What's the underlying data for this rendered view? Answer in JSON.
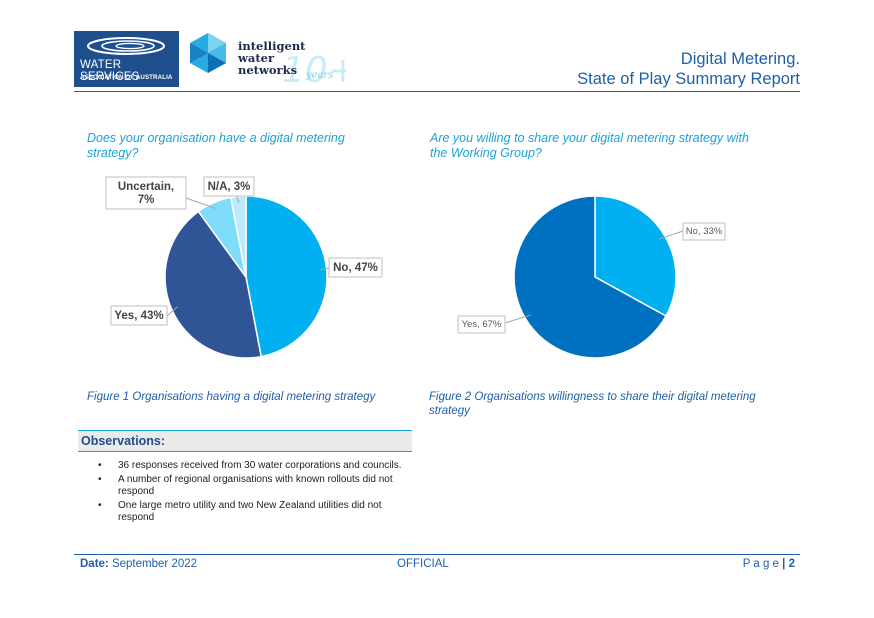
{
  "header": {
    "wsaa_logo": {
      "line1": "WATER SERVICES",
      "line2": "ASSOCIATION OF AUSTRALIA"
    },
    "iwn_logo": {
      "line1": "intelligent",
      "line2": "water",
      "line3": "networks",
      "badge": "10+",
      "years": "years"
    },
    "title_line1": "Digital Metering.",
    "title_line2": "State of Play Summary Report"
  },
  "figure1": {
    "question": "Does your organisation have a digital metering strategy?",
    "caption": "Figure 1 Organisations having a digital metering strategy"
  },
  "figure2": {
    "question": "Are you willing to share your digital metering strategy with the Working Group?",
    "caption": "Figure 2 Organisations willingness to share their digital metering strategy"
  },
  "chart_data": [
    {
      "type": "pie",
      "title": "",
      "start_angle_deg": 0,
      "slices": [
        {
          "label": "No, 47%",
          "value": 47,
          "color": "#00b0f0"
        },
        {
          "label": "Yes, 43%",
          "value": 43,
          "color": "#2f5597"
        },
        {
          "label": "Uncertain, 7%",
          "value": 7,
          "color": "#7fdcfb"
        },
        {
          "label": "N/A, 3%",
          "value": 3,
          "color": "#bde9fb"
        }
      ]
    },
    {
      "type": "pie",
      "title": "",
      "start_angle_deg": 0,
      "slices": [
        {
          "label": "No, 33%",
          "value": 33,
          "color": "#00b0f0"
        },
        {
          "label": "Yes, 67%",
          "value": 67,
          "color": "#0070c0"
        }
      ]
    }
  ],
  "observations": {
    "title": "Observations:",
    "items": [
      "36 responses received from 30 water corporations and councils.",
      "A number of regional organisations with known rollouts did not respond",
      "One large metro utility and two New Zealand utilities did not respond"
    ]
  },
  "footer": {
    "date_label": "Date:",
    "date_value": "September 2022",
    "classification": "OFFICIAL",
    "page_label": "P a g e",
    "page_sep": "|",
    "page_number": "2"
  }
}
